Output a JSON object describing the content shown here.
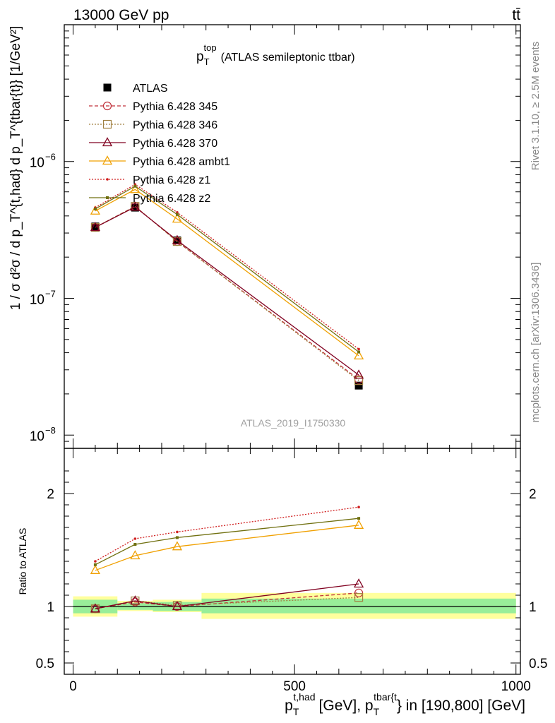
{
  "header": {
    "energy": "13000 GeV pp",
    "process": "tt̄"
  },
  "side": {
    "rivet": "Rivet 3.1.10, ≥ 2.5M events",
    "mcplots": "mcplots.cern.ch [arXiv:1306.3436]"
  },
  "chart_data": [
    {
      "type": "line",
      "title_main": "p",
      "title_sup": "top",
      "title_sub": "T",
      "title_rest": "(ATLAS semileptonic ttbar)",
      "watermark": "ATLAS_2019_I1750330",
      "ylabel": "1 / σ d²σ / d p_T^{t,had} d p_T^{tbar{t}} [1/GeV²]",
      "yscale": "log",
      "ylim": [
        8e-09,
        1e-05
      ],
      "xlim": [
        -20,
        1010
      ],
      "y_ticks": [
        {
          "v": 1e-06,
          "label": "10",
          "exp": "−6"
        },
        {
          "v": 1e-07,
          "label": "10",
          "exp": "−7"
        },
        {
          "v": 1e-08,
          "label": "10",
          "exp": "−8"
        }
      ],
      "x": [
        50,
        140,
        235,
        645
      ],
      "x_edges": [
        0,
        100,
        180,
        290,
        1000
      ],
      "legend_position": "top-left",
      "series": [
        {
          "name": "ATLAS",
          "color": "#000000",
          "dash": "",
          "marker": "square-filled",
          "values": [
            3.35e-07,
            4.6e-07,
            2.65e-07,
            2.3e-08
          ]
        },
        {
          "name": "Pythia 6.428 345",
          "color": "#c0303a",
          "dash": "5,3",
          "marker": "circle",
          "values": [
            3.3e-07,
            4.7e-07,
            2.6e-07,
            2.55e-08
          ]
        },
        {
          "name": "Pythia 6.428 346",
          "color": "#a08040",
          "dash": "2,2",
          "marker": "square",
          "values": [
            3.3e-07,
            4.7e-07,
            2.6e-07,
            2.5e-08
          ]
        },
        {
          "name": "Pythia 6.428 370",
          "color": "#800020",
          "dash": "",
          "marker": "triangle",
          "values": [
            3.3e-07,
            4.65e-07,
            2.65e-07,
            2.75e-08
          ]
        },
        {
          "name": "Pythia 6.428 ambt1",
          "color": "#f0a000",
          "dash": "",
          "marker": "triangle",
          "values": [
            4.35e-07,
            6.25e-07,
            3.8e-07,
            3.8e-08
          ]
        },
        {
          "name": "Pythia 6.428 z1",
          "color": "#d02020",
          "dash": "2,2",
          "marker": "dot",
          "values": [
            4.6e-07,
            6.8e-07,
            4.25e-07,
            4.25e-08
          ]
        },
        {
          "name": "Pythia 6.428 z2",
          "color": "#707010",
          "dash": "",
          "marker": "tick",
          "values": [
            4.5e-07,
            6.6e-07,
            4.1e-07,
            4.05e-08
          ]
        }
      ]
    },
    {
      "type": "line",
      "ylabel": "Ratio to ATLAS",
      "xlabel_main": "p",
      "xlabel_sup1": "t,had",
      "xlabel_sub1": "T",
      "xlabel_mid": "[GeV], p",
      "xlabel_sup2": "tbar{t",
      "xlabel_sub2": "T",
      "xlabel_rest": "} in [190,800] [GeV]",
      "ylim": [
        0.4,
        2.4
      ],
      "xlim": [
        -20,
        1010
      ],
      "x_ticks": [
        {
          "v": 0,
          "label": "0"
        },
        {
          "v": 500,
          "label": "500"
        },
        {
          "v": 1000,
          "label": "1000"
        }
      ],
      "y_ticks": [
        {
          "v": 2,
          "label": "2"
        },
        {
          "v": 1,
          "label": "1"
        },
        {
          "v": 0.5,
          "label": "0.5"
        }
      ],
      "bands": [
        {
          "x0": 0,
          "x1": 100,
          "inner": [
            0.94,
            1.06
          ],
          "outer": [
            0.91,
            1.09
          ]
        },
        {
          "x0": 100,
          "x1": 180,
          "inner": [
            0.97,
            1.03
          ],
          "outer": [
            0.96,
            1.05
          ]
        },
        {
          "x0": 180,
          "x1": 290,
          "inner": [
            0.96,
            1.04
          ],
          "outer": [
            0.95,
            1.06
          ]
        },
        {
          "x0": 290,
          "x1": 1000,
          "inner": [
            0.94,
            1.07
          ],
          "outer": [
            0.89,
            1.12
          ]
        }
      ],
      "band_colors": {
        "inner": "#99ee99",
        "outer": "#ffff9d"
      },
      "series": [
        {
          "name": "Pythia 6.428 345",
          "values": [
            0.98,
            1.04,
            1.0,
            1.12
          ]
        },
        {
          "name": "Pythia 6.428 346",
          "values": [
            0.98,
            1.05,
            1.01,
            1.08
          ]
        },
        {
          "name": "Pythia 6.428 370",
          "values": [
            0.98,
            1.05,
            1.0,
            1.2
          ]
        },
        {
          "name": "Pythia 6.428 ambt1",
          "values": [
            1.32,
            1.45,
            1.53,
            1.72
          ]
        },
        {
          "name": "Pythia 6.428 z1",
          "values": [
            1.4,
            1.6,
            1.66,
            1.88
          ]
        },
        {
          "name": "Pythia 6.428 z2",
          "values": [
            1.37,
            1.55,
            1.61,
            1.78
          ]
        }
      ]
    }
  ]
}
